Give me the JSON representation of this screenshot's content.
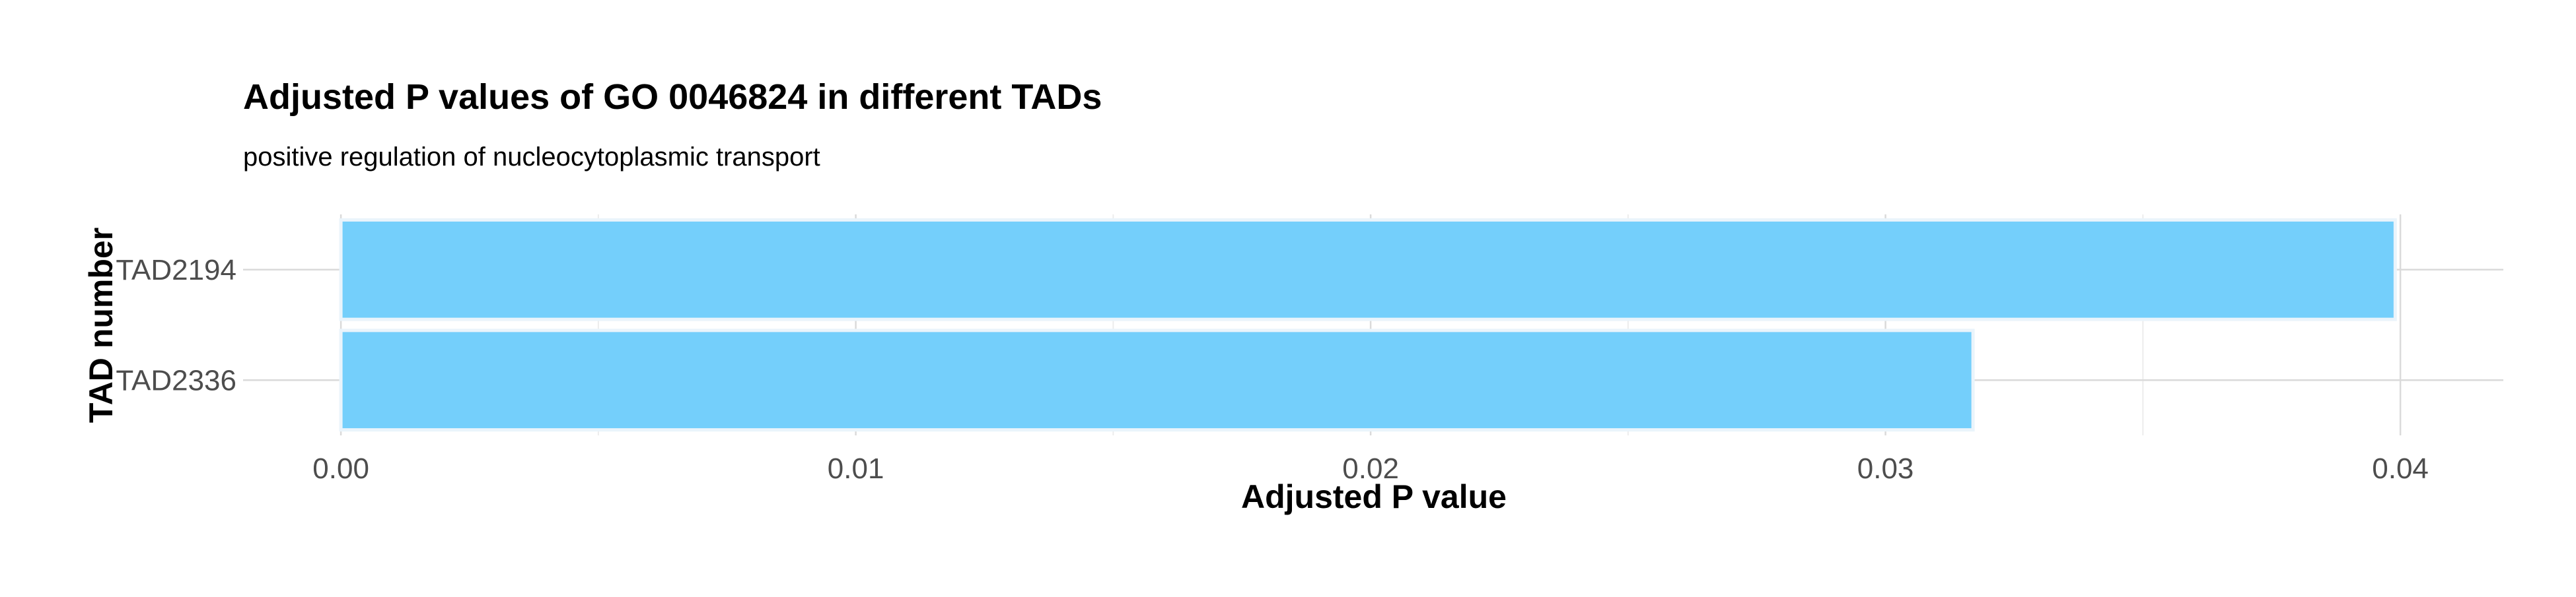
{
  "chart_data": {
    "type": "bar",
    "orientation": "horizontal",
    "title": "Adjusted P values of GO 0046824 in different TADs",
    "subtitle": "positive regulation of nucleocytoplasmic transport",
    "xlabel": "Adjusted P value",
    "ylabel": "TAD number",
    "categories": [
      "TAD2194",
      "TAD2336"
    ],
    "values": [
      0.0399,
      0.0317
    ],
    "xlim": [
      -0.0019,
      0.042
    ],
    "xticks": [
      0.0,
      0.01,
      0.02,
      0.03,
      0.04
    ],
    "xtick_labels": [
      "0.00",
      "0.01",
      "0.02",
      "0.03",
      "0.04"
    ],
    "grid": true,
    "bar_color": "#74CFFB",
    "bar_outline_color": "#EAF4FB"
  }
}
